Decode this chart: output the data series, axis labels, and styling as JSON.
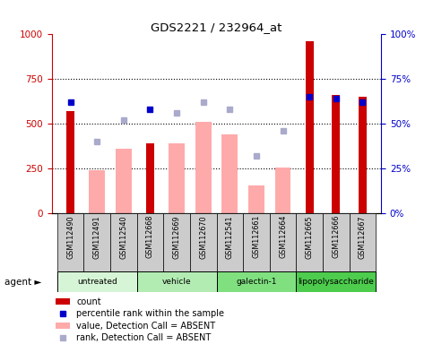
{
  "title": "GDS2221 / 232964_at",
  "samples": [
    "GSM112490",
    "GSM112491",
    "GSM112540",
    "GSM112668",
    "GSM112669",
    "GSM112670",
    "GSM112541",
    "GSM112661",
    "GSM112664",
    "GSM112665",
    "GSM112666",
    "GSM112667"
  ],
  "groups": [
    {
      "label": "untreated",
      "color": "#d6f5d6",
      "indices": [
        0,
        1,
        2
      ]
    },
    {
      "label": "vehicle",
      "color": "#b3ecb3",
      "indices": [
        3,
        4,
        5
      ]
    },
    {
      "label": "galectin-1",
      "color": "#80e080",
      "indices": [
        6,
        7,
        8
      ]
    },
    {
      "label": "lipopolysaccharide",
      "color": "#4dcc4d",
      "indices": [
        9,
        10,
        11
      ]
    }
  ],
  "count_values": [
    570,
    0,
    0,
    390,
    0,
    0,
    0,
    0,
    0,
    960,
    660,
    650
  ],
  "pct_rank_values": [
    62,
    0,
    0,
    58,
    0,
    0,
    0,
    0,
    0,
    65,
    64,
    62
  ],
  "absent_value": [
    0,
    240,
    360,
    0,
    390,
    510,
    440,
    155,
    255,
    0,
    0,
    0
  ],
  "absent_rank": [
    0,
    40,
    52,
    0,
    56,
    62,
    58,
    32,
    46,
    0,
    0,
    0
  ],
  "ylim_left": [
    0,
    1000
  ],
  "ylim_right": [
    0,
    100
  ],
  "yticks_left": [
    0,
    250,
    500,
    750,
    1000
  ],
  "yticks_right": [
    0,
    25,
    50,
    75,
    100
  ],
  "count_color": "#cc0000",
  "pct_rank_color": "#0000cc",
  "absent_value_color": "#ffaaaa",
  "absent_rank_color": "#aaaacc",
  "plot_bg": "#ffffff",
  "left_axis_color": "#cc0000",
  "right_axis_color": "#0000cc",
  "sample_box_color": "#cccccc",
  "pct_scale": 10.0,
  "rank_scale": 10.0
}
